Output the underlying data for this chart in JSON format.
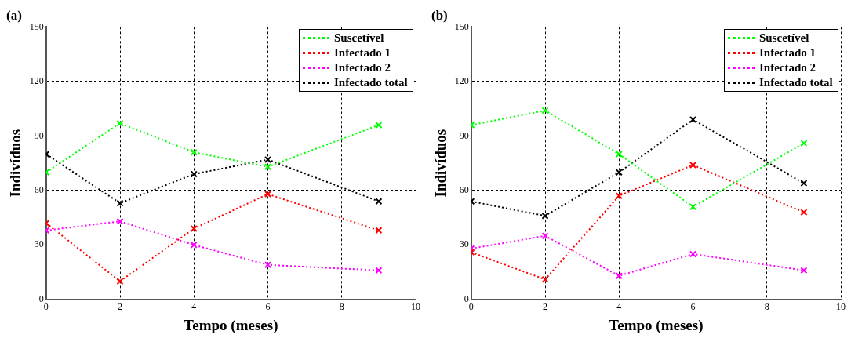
{
  "chart_data": [
    {
      "type": "line",
      "title": "(a)",
      "xlabel": "Tempo (meses)",
      "ylabel": "Indivíduos",
      "x": [
        0,
        2,
        4,
        6,
        9
      ],
      "xlim": [
        0,
        10
      ],
      "xticks": [
        0,
        2,
        4,
        6,
        8,
        10
      ],
      "ylim": [
        0,
        150
      ],
      "yticks": [
        0,
        30,
        60,
        90,
        120,
        150
      ],
      "grid": true,
      "legend": "top right",
      "marker": "cross",
      "line_style": "dotted",
      "series": [
        {
          "name": "Suscetível",
          "color": "#00ff00",
          "values": [
            70,
            97,
            81,
            73,
            96
          ]
        },
        {
          "name": "Infectado 1",
          "color": "#ff0000",
          "values": [
            42,
            10,
            39,
            58,
            38
          ]
        },
        {
          "name": "Infectado 2",
          "color": "#ff00ff",
          "values": [
            38,
            43,
            30,
            19,
            16
          ]
        },
        {
          "name": "Infectado total",
          "color": "#000000",
          "values": [
            80,
            53,
            69,
            77,
            54
          ]
        }
      ]
    },
    {
      "type": "line",
      "title": "(b)",
      "xlabel": "Tempo (meses)",
      "ylabel": "Indivíduos",
      "x": [
        0,
        2,
        4,
        6,
        9
      ],
      "xlim": [
        0,
        10
      ],
      "xticks": [
        0,
        2,
        4,
        6,
        8,
        10
      ],
      "ylim": [
        0,
        150
      ],
      "yticks": [
        0,
        30,
        60,
        90,
        120,
        150
      ],
      "grid": true,
      "legend": "top right",
      "marker": "cross",
      "line_style": "dotted",
      "series": [
        {
          "name": "Suscetível",
          "color": "#00ff00",
          "values": [
            96,
            104,
            80,
            51,
            86
          ]
        },
        {
          "name": "Infectado 1",
          "color": "#ff0000",
          "values": [
            26,
            11,
            57,
            74,
            48
          ]
        },
        {
          "name": "Infectado 2",
          "color": "#ff00ff",
          "values": [
            28,
            35,
            13,
            25,
            16
          ]
        },
        {
          "name": "Infectado total",
          "color": "#000000",
          "values": [
            54,
            46,
            70,
            99,
            64
          ]
        }
      ]
    }
  ]
}
